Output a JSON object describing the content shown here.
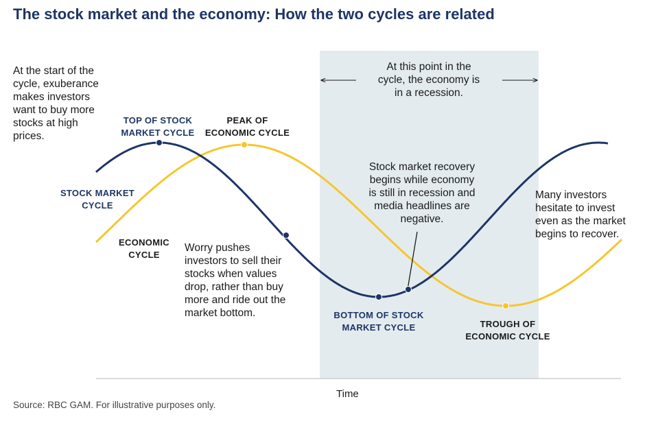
{
  "title": "The stock market and the economy: How the two cycles are related",
  "colors": {
    "stock_cycle": "#1d3566",
    "economic_cycle": "#f6c62f",
    "recession_band": "#e4ebef",
    "axis": "#cfcfcf",
    "title": "#1d3566"
  },
  "annotations": {
    "start_note": [
      "At the start of the",
      "cycle, exuberance",
      "makes investors",
      "want to buy more",
      "stocks at high",
      "prices."
    ],
    "recession_note": [
      "At this point in the",
      "cycle, the economy is",
      "in a recession."
    ],
    "recovery_note": [
      "Stock market recovery",
      "begins while economy",
      "is still in recession and",
      "media headlines are",
      "negative."
    ],
    "worry_note": [
      "Worry pushes",
      "investors to sell their",
      "stocks when values",
      "drop, rather than buy",
      "more and ride out the",
      "market bottom."
    ],
    "hesitate_note": [
      "Many investors",
      "hesitate to invest",
      "even as the market",
      "begins to recover."
    ]
  },
  "labels": {
    "top_stock": [
      "TOP OF STOCK",
      "MARKET CYCLE"
    ],
    "peak_economic": [
      "PEAK OF",
      "ECONOMIC CYCLE"
    ],
    "stock_market_cycle": [
      "STOCK MARKET",
      "CYCLE"
    ],
    "economic_cycle": [
      "ECONOMIC",
      "CYCLE"
    ],
    "bottom_stock": [
      "BOTTOM OF STOCK",
      "MARKET CYCLE"
    ],
    "trough_economic": [
      "TROUGH OF",
      "ECONOMIC CYCLE"
    ]
  },
  "axis_label": "Time",
  "source": "Source: RBC GAM. For illustrative purposes only."
}
